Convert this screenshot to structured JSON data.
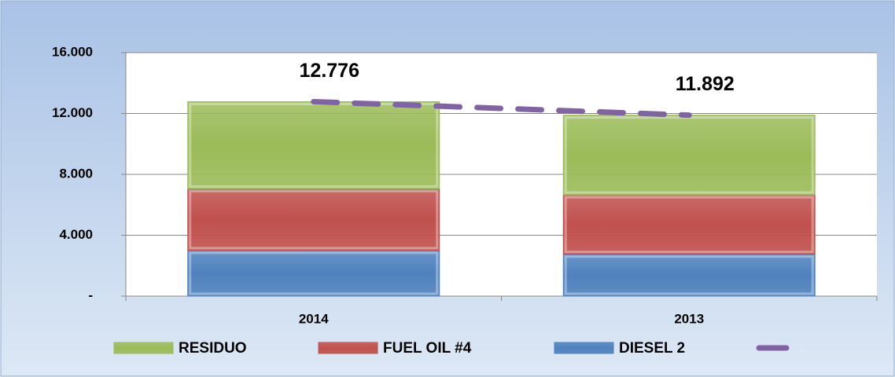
{
  "chart_data": {
    "type": "bar",
    "stacked": true,
    "categories": [
      "2014",
      "2013"
    ],
    "series": [
      {
        "name": "RESIDUO",
        "color": "#9bbb59",
        "values": [
          5726,
          5242
        ]
      },
      {
        "name": "FUEL OIL #4",
        "color": "#c0504d",
        "values": [
          4050,
          3900
        ]
      },
      {
        "name": "DIESEL 2",
        "color": "#4f81bd",
        "values": [
          3000,
          2750
        ]
      }
    ],
    "line": {
      "type": "line",
      "color": "#8064a2",
      "values": [
        12776,
        11892
      ],
      "value_labels": [
        "12.776",
        "11.892"
      ]
    },
    "ylim": [
      0,
      16000
    ],
    "yticks": [
      {
        "value": 0,
        "label": "-"
      },
      {
        "value": 4000,
        "label": "4.000"
      },
      {
        "value": 8000,
        "label": "8.000"
      },
      {
        "value": 12000,
        "label": "12.000"
      },
      {
        "value": 16000,
        "label": "16.000"
      }
    ],
    "grid": true,
    "legend": "bottom"
  }
}
